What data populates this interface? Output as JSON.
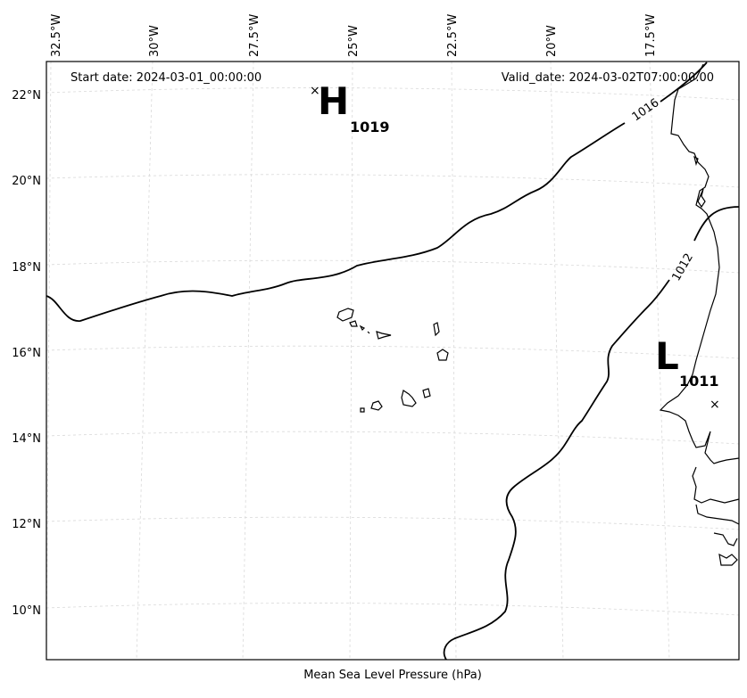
{
  "header": {
    "start_date": "Start date: 2024-03-01_00:00:00",
    "valid_date": "Valid_date: 2024-03-02T07:00:00.00"
  },
  "footer": {
    "caption": "Mean Sea Level Pressure (hPa)"
  },
  "longitude_labels": [
    "32.5°W",
    "30°W",
    "27.5°W",
    "25°W",
    "22.5°W",
    "20°W",
    "17.5°W"
  ],
  "latitude_labels": [
    "22°N",
    "20°N",
    "18°N",
    "16°N",
    "14°N",
    "12°N",
    "10°N"
  ],
  "pressure_systems": [
    {
      "letter": "H",
      "value": "1019"
    },
    {
      "letter": "L",
      "value": "1011"
    }
  ],
  "isobars": [
    {
      "label": "1016"
    },
    {
      "label": "1012"
    }
  ],
  "colors": {
    "isobar": "#000000",
    "coastline": "#000000",
    "grid": "#d3d3d3"
  }
}
